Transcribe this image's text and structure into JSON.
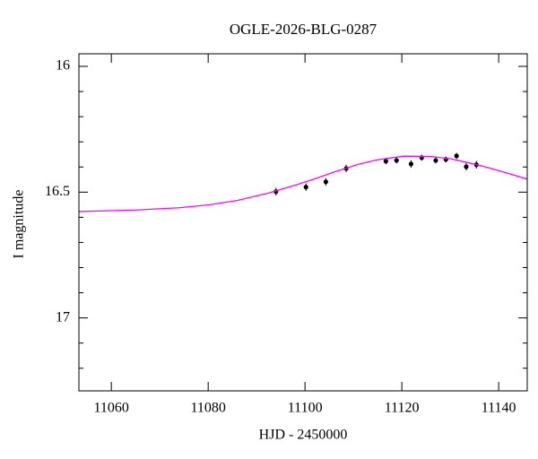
{
  "chart_data": {
    "type": "scatter",
    "title": "OGLE-2026-BLG-0287",
    "x_label": "HJD - 2450000",
    "y_label": "I magnitude",
    "xlim": [
      11053.3,
      11145.9
    ],
    "ylim": [
      15.95,
      17.29
    ],
    "y_inverted": true,
    "xticks": [
      11060,
      11080,
      11100,
      11120,
      11140
    ],
    "yticks": [
      16,
      16.5,
      17
    ],
    "yminorticks": [
      16.1,
      16.2,
      16.3,
      16.4,
      16.6,
      16.7,
      16.8,
      16.9,
      17.1,
      17.2
    ],
    "series": [
      {
        "type": "scatter",
        "color": "#000000",
        "x": [
          11094,
          11100.2,
          11104.3,
          11108.5,
          11116.7,
          11118.9,
          11121.9,
          11124.1,
          11127,
          11129.1,
          11131.3,
          11133.3,
          11135.4
        ],
        "values": [
          16.498,
          16.48,
          16.459,
          16.406,
          16.377,
          16.374,
          16.388,
          16.363,
          16.374,
          16.37,
          16.356,
          16.399,
          16.391
        ],
        "errors": [
          0.015,
          0.015,
          0.015,
          0.015,
          0.012,
          0.012,
          0.015,
          0.012,
          0.012,
          0.012,
          0.012,
          0.015,
          0.015
        ]
      },
      {
        "type": "line",
        "color": "#ff00ff",
        "x": [
          11053.3,
          11065,
          11074,
          11080,
          11086,
          11092.6,
          11098,
          11102,
          11106,
          11111.1,
          11115,
          11120.4,
          11125.9,
          11130,
          11133.3,
          11137,
          11140.7,
          11145.9
        ],
        "values": [
          16.577,
          16.571,
          16.562,
          16.551,
          16.533,
          16.503,
          16.472,
          16.447,
          16.42,
          16.389,
          16.371,
          16.357,
          16.358,
          16.367,
          16.381,
          16.398,
          16.418,
          16.448
        ]
      }
    ]
  }
}
